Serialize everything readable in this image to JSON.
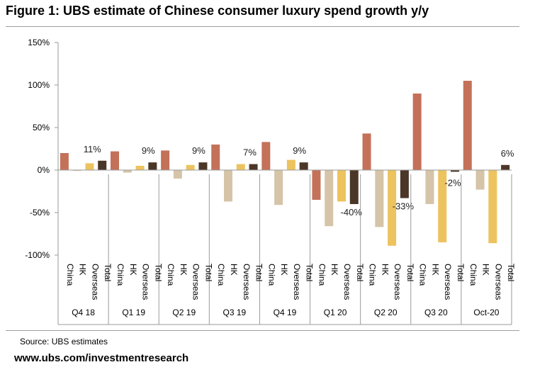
{
  "title": "Figure 1: UBS estimate of Chinese consumer luxury spend growth y/y",
  "footer": {
    "source": "Source:  UBS estimates",
    "website": "www.ubs.com/investmentresearch"
  },
  "chart_data": {
    "type": "bar",
    "title": "Figure 1: UBS estimate of Chinese consumer luxury spend growth y/y",
    "ylim": [
      -100,
      150
    ],
    "yticks": [
      -100,
      -50,
      0,
      50,
      100,
      150
    ],
    "ytick_labels": [
      "-100%",
      "-50%",
      "0%",
      "50%",
      "100%",
      "150%"
    ],
    "xlabel": "",
    "ylabel": "",
    "grid": false,
    "sub_categories": [
      "China",
      "HK",
      "Overseas",
      "Total"
    ],
    "groups": [
      "Q4 18",
      "Q1 19",
      "Q2 19",
      "Q3 19",
      "Q4 19",
      "Q1 20",
      "Q2 20",
      "Q3 20",
      "Oct-20"
    ],
    "colors": {
      "China": "#c4715a",
      "HK": "#d5c4a8",
      "Overseas": "#ecc35e",
      "Total": "#4b3728"
    },
    "series": [
      {
        "name": "China",
        "values": [
          20,
          22,
          23,
          30,
          33,
          -35,
          43,
          90,
          105
        ]
      },
      {
        "name": "HK",
        "values": [
          -1,
          -3,
          -10,
          -37,
          -41,
          -66,
          -67,
          -40,
          -23
        ]
      },
      {
        "name": "Overseas",
        "values": [
          8,
          5,
          6,
          7,
          12,
          -37,
          -89,
          -85,
          -86
        ]
      },
      {
        "name": "Total",
        "values": [
          11,
          9,
          9,
          7,
          9,
          -40,
          -33,
          -2,
          6
        ]
      }
    ],
    "data_labels": [
      "11%",
      "9%",
      "9%",
      "7%",
      "9%",
      "-40%",
      "-33%",
      "-2%",
      "6%"
    ]
  }
}
